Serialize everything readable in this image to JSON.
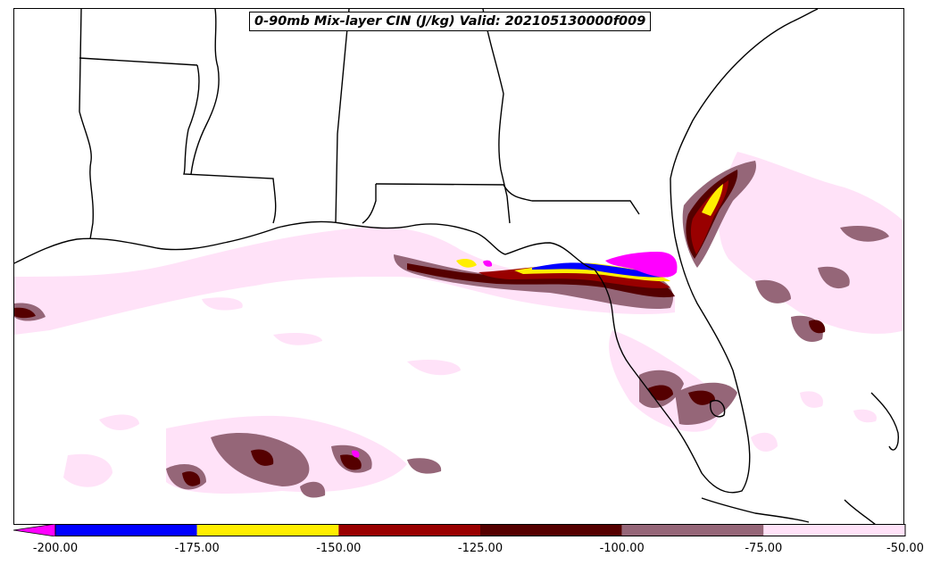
{
  "title": "0-90mb Mix-layer CIN (J/kg) Valid: 202105130000f009",
  "colorbar": {
    "levels": [
      -200,
      -175,
      -150,
      -125,
      -100,
      -75,
      -50
    ],
    "tick_labels": [
      "-200.00",
      "-175.00",
      "-150.00",
      "-125.00",
      "-100.00",
      "-75.00",
      "-50.00"
    ],
    "extend_color": "#ff00ff",
    "colors": [
      "#0000ff",
      "#ffee00",
      "#990000",
      "#550000",
      "#956678",
      "#ffe2f8"
    ]
  },
  "legend_colors": {
    "lt_-200": "#ff00ff",
    "-200_to_-175": "#0000ff",
    "-175_to_-150": "#ffee00",
    "-150_to_-125": "#990000",
    "-125_to_-100": "#550000",
    "-100_to_-75": "#956678",
    "-75_to_-50": "#ffe2f8"
  }
}
